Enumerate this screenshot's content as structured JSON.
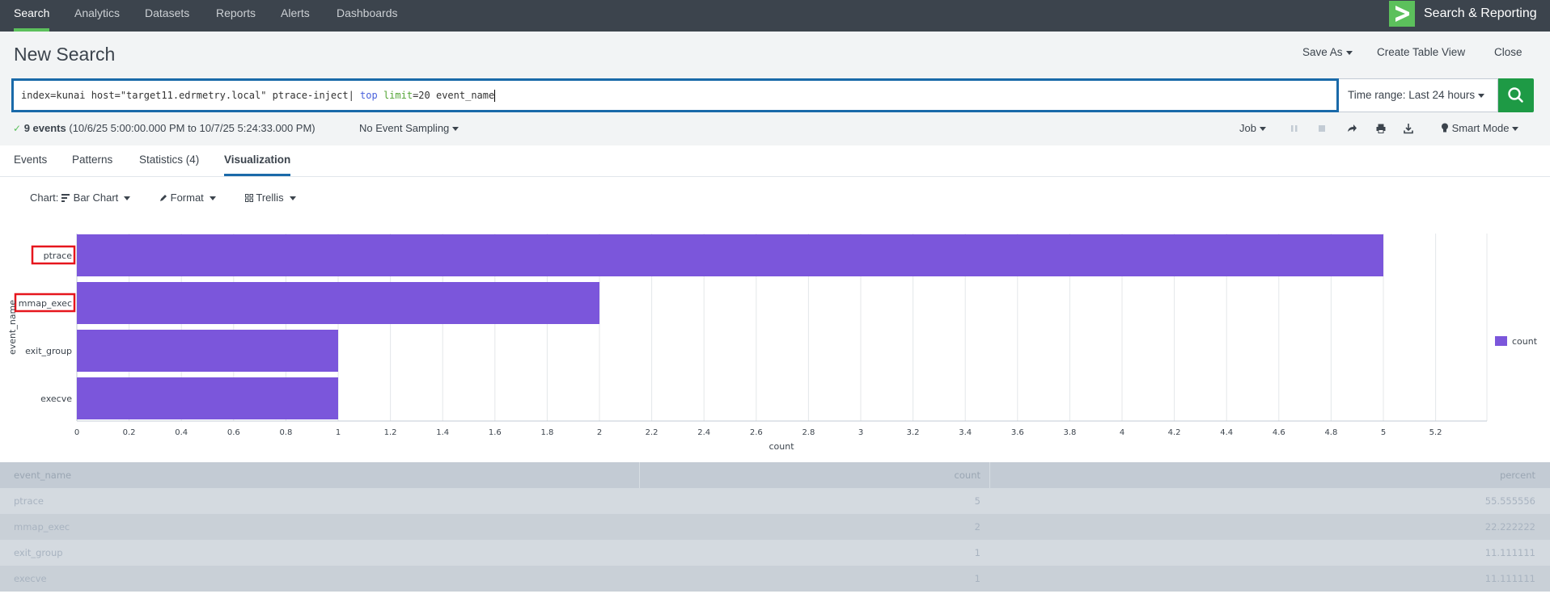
{
  "nav": {
    "items": [
      {
        "label": "Search",
        "active": true
      },
      {
        "label": "Analytics"
      },
      {
        "label": "Datasets"
      },
      {
        "label": "Reports"
      },
      {
        "label": "Alerts"
      },
      {
        "label": "Dashboards"
      }
    ],
    "app_title": "Search & Reporting",
    "logo_icon": "chevron-right-icon"
  },
  "header": {
    "title": "New Search",
    "save_as": "Save As",
    "create_table_view": "Create Table View",
    "close": "Close"
  },
  "search": {
    "query_parts": {
      "plain1": "index=kunai host=\"target11.edrmetry.local\" ptrace-inject| ",
      "command": "top",
      "space": " ",
      "argname": "limit",
      "rest": "=20 event_name"
    },
    "time_range": "Time range: Last 24 hours",
    "search_icon": "search-icon"
  },
  "status": {
    "check_icon": "check-icon",
    "events_count": "9 events",
    "range": "(10/6/25 5:00:00.000 PM to 10/7/25 5:24:33.000 PM)",
    "sampling": "No Event Sampling",
    "job": "Job",
    "smart_mode": "Smart Mode"
  },
  "tabs": [
    {
      "label": "Events"
    },
    {
      "label": "Patterns"
    },
    {
      "label": "Statistics (4)"
    },
    {
      "label": "Visualization",
      "active": true
    }
  ],
  "vis_controls": {
    "chart_label": "Chart:",
    "chart_type": "Bar Chart",
    "format": "Format",
    "trellis": "Trellis"
  },
  "colors": {
    "bar": "#7b56db",
    "highlight": "#e6161d",
    "accent": "#5cc05c",
    "tab_active": "#1a6aa9"
  },
  "chart_data": {
    "type": "bar",
    "orientation": "horizontal",
    "categories": [
      "ptrace",
      "mmap_exec",
      "exit_group",
      "execve"
    ],
    "series": [
      {
        "name": "count",
        "values": [
          5,
          2,
          1,
          1
        ]
      }
    ],
    "xlabel": "count",
    "ylabel": "event_name",
    "xlim": [
      0,
      5.2
    ],
    "xticks": [
      "0",
      "0.2",
      "0.4",
      "0.6",
      "0.8",
      "1",
      "1.2",
      "1.4",
      "1.6",
      "1.8",
      "2",
      "2.2",
      "2.4",
      "2.6",
      "2.8",
      "3",
      "3.2",
      "3.4",
      "3.6",
      "3.8",
      "4",
      "4.2",
      "4.4",
      "4.6",
      "4.8",
      "5",
      "5.2"
    ],
    "highlighted_categories": [
      "ptrace",
      "mmap_exec"
    ],
    "grid": true,
    "legend_position": "right"
  },
  "table": {
    "headers": [
      "event_name",
      "count",
      "percent"
    ],
    "rows": [
      [
        "ptrace",
        "5",
        "55.555556"
      ],
      [
        "mmap_exec",
        "2",
        "22.222222"
      ],
      [
        "exit_group",
        "1",
        "11.111111"
      ],
      [
        "execve",
        "1",
        "11.111111"
      ]
    ]
  }
}
